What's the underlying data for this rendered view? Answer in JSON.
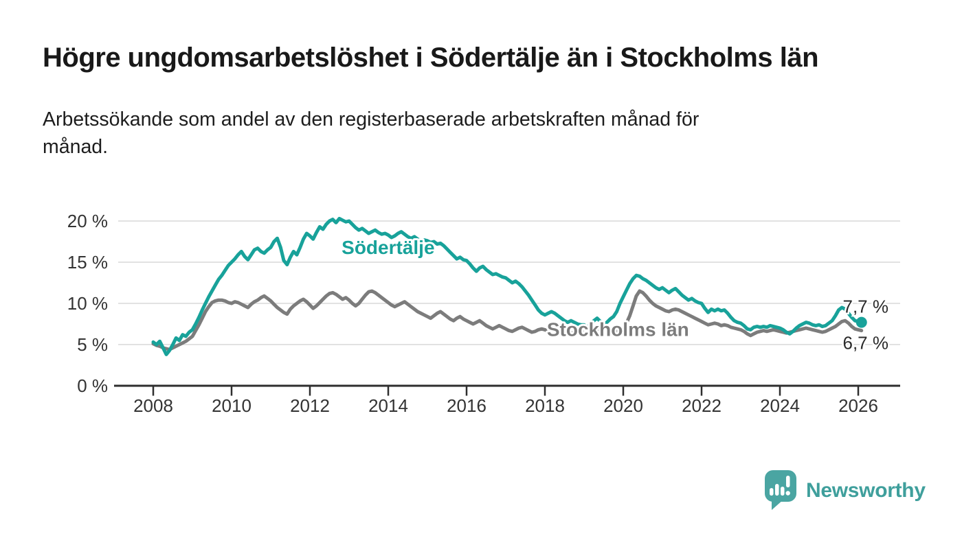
{
  "title": "Högre ungdomsarbetslöshet i Södertälje än i Stockholms län",
  "subtitle": "Arbetssökande som andel av den registerbaserade arbetskraften månad för\nmånad.",
  "branding": {
    "logo_text": "Newsworthy",
    "logo_icon": "speech-bubble-bar-chart"
  },
  "colors": {
    "accent_teal": "#18a29a",
    "series_gray": "#7c7c7c",
    "grid": "#d9d9d9",
    "axis": "#2e2e2e",
    "text_dark": "#1d1d1d",
    "logo_teal": "#4aa5a2",
    "logo_text_teal": "#3f9f9c"
  },
  "chart_data": {
    "type": "line",
    "unit": "%",
    "x_start_year": 2008,
    "x_start_month": 1,
    "x_interval": "monthly",
    "x_end_year": 2026,
    "x_end_month": 2,
    "xlim": [
      2007.05,
      2027.1
    ],
    "ylim": [
      0,
      21
    ],
    "grid": "horizontal",
    "x_ticks": [
      {
        "value": 2008,
        "label": "2008"
      },
      {
        "value": 2010,
        "label": "2010"
      },
      {
        "value": 2012,
        "label": "2012"
      },
      {
        "value": 2014,
        "label": "2014"
      },
      {
        "value": 2016,
        "label": "2016"
      },
      {
        "value": 2018,
        "label": "2018"
      },
      {
        "value": 2020,
        "label": "2020"
      },
      {
        "value": 2022,
        "label": "2022"
      },
      {
        "value": 2024,
        "label": "2024"
      },
      {
        "value": 2026,
        "label": "2026"
      }
    ],
    "y_ticks": [
      {
        "value": 0,
        "label": "0 %"
      },
      {
        "value": 5,
        "label": "5 %"
      },
      {
        "value": 10,
        "label": "10 %"
      },
      {
        "value": 15,
        "label": "15 %"
      },
      {
        "value": 20,
        "label": "20 %"
      }
    ],
    "series": [
      {
        "name": "Södertälje",
        "slug": "sodertalje",
        "color": "#18a29a",
        "end_label": "7,7 %",
        "end_value": 7.7,
        "end_marker": true,
        "end_label_dy": -23,
        "name_label_pos": {
          "year": 2012.81,
          "value": 16.0
        },
        "values": [
          5.3,
          5.0,
          5.4,
          4.6,
          3.8,
          4.3,
          5.0,
          5.8,
          5.5,
          6.2,
          6.0,
          6.5,
          6.8,
          7.5,
          8.3,
          9.2,
          10.0,
          10.8,
          11.5,
          12.2,
          12.9,
          13.4,
          14.0,
          14.6,
          15.0,
          15.4,
          15.9,
          16.3,
          15.7,
          15.3,
          15.9,
          16.5,
          16.7,
          16.3,
          16.1,
          16.5,
          16.8,
          17.5,
          17.9,
          16.8,
          15.2,
          14.7,
          15.6,
          16.3,
          15.9,
          16.8,
          17.8,
          18.5,
          18.2,
          17.8,
          18.6,
          19.3,
          19.0,
          19.6,
          20.0,
          20.2,
          19.8,
          20.3,
          20.1,
          19.9,
          20.0,
          19.6,
          19.2,
          18.9,
          19.1,
          18.8,
          18.5,
          18.7,
          18.9,
          18.6,
          18.4,
          18.5,
          18.3,
          18.0,
          18.2,
          18.5,
          18.7,
          18.4,
          18.1,
          17.9,
          18.1,
          17.8,
          17.6,
          17.7,
          17.6,
          17.4,
          17.5,
          17.2,
          17.3,
          17.0,
          16.6,
          16.2,
          15.8,
          15.4,
          15.6,
          15.3,
          15.2,
          14.8,
          14.3,
          13.9,
          14.3,
          14.5,
          14.1,
          13.8,
          13.5,
          13.6,
          13.4,
          13.2,
          13.1,
          12.8,
          12.5,
          12.7,
          12.4,
          12.0,
          11.5,
          11.0,
          10.4,
          9.8,
          9.2,
          8.8,
          8.6,
          8.8,
          9.0,
          8.8,
          8.5,
          8.2,
          7.9,
          7.7,
          7.9,
          7.7,
          7.5,
          7.4,
          7.4,
          7.1,
          7.5,
          7.9,
          8.2,
          7.8,
          7.4,
          7.7,
          8.1,
          8.4,
          9.0,
          10.0,
          10.8,
          11.6,
          12.4,
          13.0,
          13.4,
          13.3,
          13.0,
          12.8,
          12.5,
          12.2,
          11.9,
          11.7,
          11.9,
          11.6,
          11.3,
          11.6,
          11.8,
          11.4,
          11.0,
          10.7,
          10.4,
          10.6,
          10.3,
          10.1,
          10.0,
          9.4,
          8.9,
          9.3,
          9.1,
          9.3,
          9.1,
          9.2,
          8.8,
          8.3,
          7.9,
          7.7,
          7.6,
          7.3,
          6.9,
          6.8,
          7.1,
          7.2,
          7.1,
          7.2,
          7.1,
          7.3,
          7.2,
          7.1,
          7.0,
          6.8,
          6.5,
          6.3,
          6.6,
          7.0,
          7.3,
          7.5,
          7.7,
          7.6,
          7.4,
          7.3,
          7.4,
          7.2,
          7.3,
          7.6,
          7.9,
          8.5,
          9.2,
          9.5,
          9.3,
          8.8,
          8.3,
          7.9,
          7.8,
          7.7
        ]
      },
      {
        "name": "Stockholms län",
        "slug": "stockholms-lan",
        "color": "#7c7c7c",
        "end_label": "6,7 %",
        "end_value": 6.7,
        "end_marker": false,
        "end_label_dy": 18,
        "name_label_pos": {
          "year": 2018.05,
          "value": 6.05
        },
        "values": [
          5.1,
          4.9,
          4.8,
          4.6,
          4.5,
          4.4,
          4.6,
          4.8,
          5.0,
          5.2,
          5.4,
          5.7,
          6.0,
          6.7,
          7.4,
          8.2,
          9.0,
          9.6,
          10.1,
          10.3,
          10.4,
          10.4,
          10.3,
          10.1,
          10.0,
          10.2,
          10.1,
          9.9,
          9.7,
          9.5,
          9.9,
          10.2,
          10.4,
          10.7,
          10.9,
          10.6,
          10.3,
          9.9,
          9.5,
          9.2,
          8.9,
          8.7,
          9.3,
          9.7,
          10.0,
          10.3,
          10.5,
          10.2,
          9.8,
          9.4,
          9.7,
          10.1,
          10.5,
          10.9,
          11.2,
          11.3,
          11.1,
          10.8,
          10.5,
          10.7,
          10.4,
          10.0,
          9.7,
          10.0,
          10.5,
          11.0,
          11.4,
          11.5,
          11.3,
          11.0,
          10.7,
          10.4,
          10.1,
          9.8,
          9.6,
          9.8,
          10.0,
          10.2,
          9.9,
          9.6,
          9.3,
          9.0,
          8.8,
          8.6,
          8.4,
          8.2,
          8.5,
          8.8,
          9.0,
          8.7,
          8.4,
          8.1,
          7.9,
          8.2,
          8.4,
          8.1,
          7.9,
          7.7,
          7.5,
          7.7,
          7.9,
          7.6,
          7.3,
          7.1,
          6.9,
          7.1,
          7.3,
          7.1,
          6.9,
          6.7,
          6.6,
          6.8,
          7.0,
          7.1,
          6.9,
          6.7,
          6.5,
          6.6,
          6.8,
          6.9,
          6.8,
          6.6,
          6.5,
          6.6,
          6.7,
          6.8,
          6.7,
          6.5,
          6.4,
          6.5,
          6.6,
          6.6,
          6.5,
          6.4,
          6.5,
          6.6,
          6.7,
          6.6,
          6.4,
          6.3,
          6.4,
          6.5,
          6.6,
          6.8,
          7.0,
          7.6,
          8.5,
          9.7,
          10.9,
          11.5,
          11.3,
          10.9,
          10.4,
          10.0,
          9.7,
          9.5,
          9.3,
          9.1,
          9.0,
          9.2,
          9.3,
          9.2,
          9.0,
          8.8,
          8.6,
          8.4,
          8.2,
          8.0,
          7.8,
          7.6,
          7.4,
          7.5,
          7.6,
          7.5,
          7.3,
          7.4,
          7.3,
          7.1,
          7.0,
          6.9,
          6.8,
          6.6,
          6.3,
          6.1,
          6.3,
          6.5,
          6.6,
          6.7,
          6.6,
          6.7,
          6.8,
          6.7,
          6.6,
          6.5,
          6.4,
          6.5,
          6.6,
          6.7,
          6.8,
          6.9,
          7.0,
          6.9,
          6.8,
          6.7,
          6.6,
          6.5,
          6.6,
          6.8,
          7.0,
          7.2,
          7.5,
          7.8,
          7.9,
          7.6,
          7.2,
          6.9,
          6.8,
          6.7
        ]
      }
    ]
  }
}
